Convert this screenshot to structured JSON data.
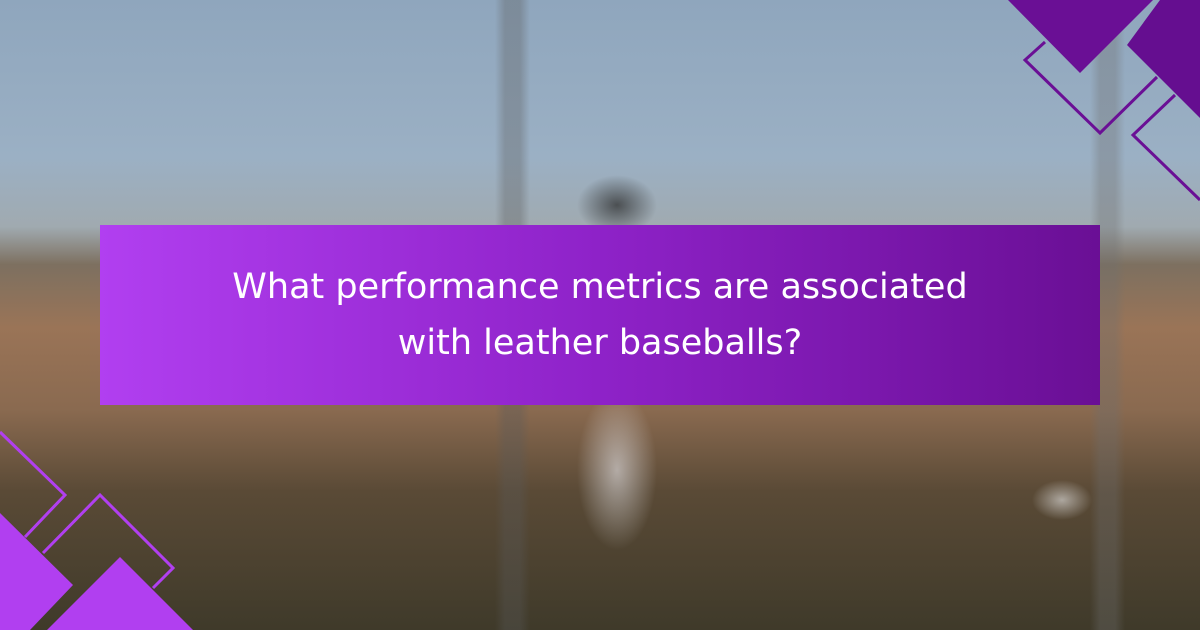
{
  "headline": "What performance metrics are associated with leather baseballs?",
  "colors": {
    "banner_start": "#b13ff0",
    "banner_end": "#6a0f95",
    "accent_dark": "#6a0f95",
    "accent_light": "#b13ff0"
  }
}
